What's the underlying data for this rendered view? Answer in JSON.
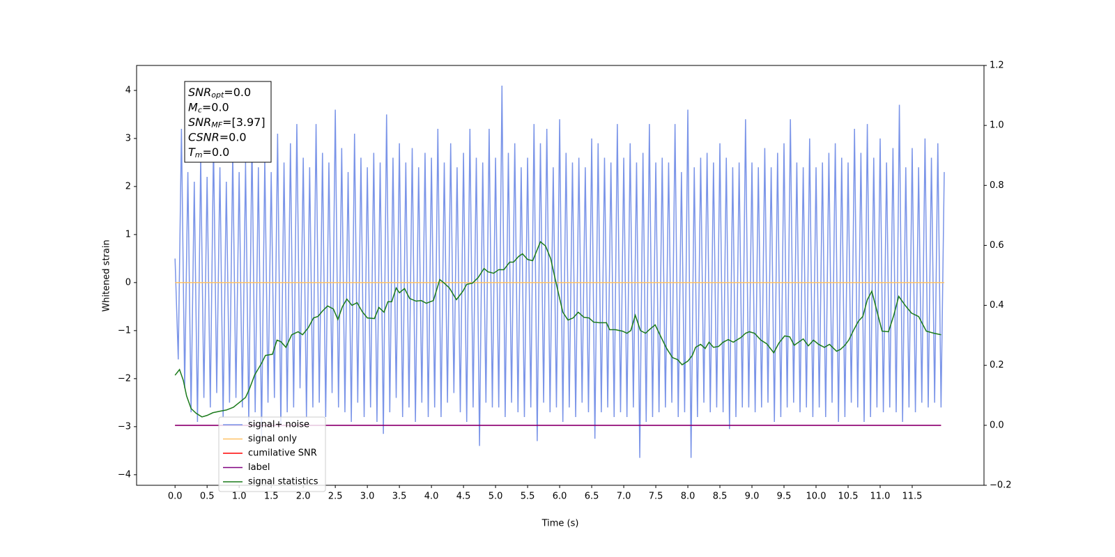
{
  "chart_data": {
    "type": "line",
    "xlabel": "Time (s)",
    "ylabel": "Whitened strain",
    "xlim": [
      -0.6,
      12.62
    ],
    "ylim": [
      -4.22,
      4.52
    ],
    "y2lim": [
      -0.2,
      1.2
    ],
    "xticks": [
      {
        "value": 0,
        "label": "0.0"
      },
      0.5,
      {
        "value": 1,
        "label": "1.0"
      },
      1.5,
      {
        "value": 2,
        "label": "2.0"
      },
      2.5,
      {
        "value": 3,
        "label": "3.0"
      },
      3.5,
      {
        "value": 4,
        "label": "4.0"
      },
      4.5,
      {
        "value": 5,
        "label": "5.0"
      },
      5.5,
      {
        "value": 6,
        "label": "6.0"
      },
      6.5,
      {
        "value": 7,
        "label": "7.0"
      },
      7.5,
      {
        "value": 8,
        "label": "8.0"
      },
      8.5,
      {
        "value": 9,
        "label": "9.0"
      },
      9.5,
      {
        "value": 10,
        "label": "10.0"
      },
      10.5,
      {
        "value": 11,
        "label": "11.0"
      },
      11.5
    ],
    "yticks": [
      {
        "value": -4,
        "label": "−4"
      },
      {
        "value": -3,
        "label": "−3"
      },
      {
        "value": -2,
        "label": "−2"
      },
      {
        "value": -1,
        "label": "−1"
      },
      0,
      1,
      2,
      3,
      4
    ],
    "y2ticks": [
      {
        "value": -0.2,
        "label": "−0.2"
      },
      {
        "value": 0,
        "label": "0.0"
      },
      0.2,
      0.4,
      0.6,
      0.8,
      {
        "value": 1,
        "label": "1.0"
      },
      1.2
    ],
    "grid": false,
    "legend": "lower left",
    "annotation": [
      {
        "symbol": "SNR",
        "sub": "opt",
        "text": "=0.0"
      },
      {
        "symbol": "M",
        "sub": "c",
        "text": "=0.0"
      },
      {
        "symbol": "SNR",
        "sub": "MF",
        "text": "=[3.97]"
      },
      {
        "symbol": "CSNR",
        "text": "=0.0"
      },
      {
        "symbol": "T",
        "sub": "m",
        "text": "=0.0"
      }
    ],
    "series": [
      {
        "name": "signal+ noise",
        "color": "#7a94e8",
        "axis": "y",
        "x": [
          0,
          0.05,
          0.1,
          0.15,
          0.2,
          0.25,
          0.3,
          0.35,
          0.4,
          0.45,
          0.5,
          0.55,
          0.6,
          0.65,
          0.7,
          0.75,
          0.8,
          0.85,
          0.9,
          0.95,
          1,
          1.05,
          1.1,
          1.15,
          1.2,
          1.25,
          1.3,
          1.35,
          1.4,
          1.45,
          1.5,
          1.55,
          1.6,
          1.65,
          1.7,
          1.75,
          1.8,
          1.85,
          1.9,
          1.95,
          2,
          2.05,
          2.1,
          2.15,
          2.2,
          2.25,
          2.3,
          2.35,
          2.4,
          2.45,
          2.5,
          2.55,
          2.6,
          2.65,
          2.7,
          2.75,
          2.8,
          2.85,
          2.9,
          2.95,
          3,
          3.05,
          3.1,
          3.15,
          3.2,
          3.25,
          3.3,
          3.35,
          3.4,
          3.45,
          3.5,
          3.55,
          3.6,
          3.65,
          3.7,
          3.75,
          3.8,
          3.85,
          3.9,
          3.95,
          4,
          4.05,
          4.1,
          4.15,
          4.2,
          4.25,
          4.3,
          4.35,
          4.4,
          4.45,
          4.5,
          4.55,
          4.6,
          4.65,
          4.7,
          4.75,
          4.8,
          4.85,
          4.9,
          4.95,
          5,
          5.05,
          5.1,
          5.15,
          5.2,
          5.25,
          5.3,
          5.35,
          5.4,
          5.45,
          5.5,
          5.55,
          5.6,
          5.65,
          5.7,
          5.75,
          5.8,
          5.85,
          5.9,
          5.95,
          6,
          6.05,
          6.1,
          6.15,
          6.2,
          6.25,
          6.3,
          6.35,
          6.4,
          6.45,
          6.5,
          6.55,
          6.6,
          6.65,
          6.7,
          6.75,
          6.8,
          6.85,
          6.9,
          6.95,
          7,
          7.05,
          7.1,
          7.15,
          7.2,
          7.25,
          7.3,
          7.35,
          7.4,
          7.45,
          7.5,
          7.55,
          7.6,
          7.65,
          7.7,
          7.75,
          7.8,
          7.85,
          7.9,
          7.95,
          8,
          8.05,
          8.1,
          8.15,
          8.2,
          8.25,
          8.3,
          8.35,
          8.4,
          8.45,
          8.5,
          8.55,
          8.6,
          8.65,
          8.7,
          8.75,
          8.8,
          8.85,
          8.9,
          8.95,
          9,
          9.05,
          9.1,
          9.15,
          9.2,
          9.25,
          9.3,
          9.35,
          9.4,
          9.45,
          9.5,
          9.55,
          9.6,
          9.65,
          9.7,
          9.75,
          9.8,
          9.85,
          9.9,
          9.95,
          10,
          10.05,
          10.1,
          10.15,
          10.2,
          10.25,
          10.3,
          10.35,
          10.4,
          10.45,
          10.5,
          10.55,
          10.6,
          10.65,
          10.7,
          10.75,
          10.8,
          10.85,
          10.9,
          10.95,
          11,
          11.05,
          11.1,
          11.15,
          11.2,
          11.25,
          11.3,
          11.35,
          11.4,
          11.45,
          11.5,
          11.55,
          11.6,
          11.65,
          11.7,
          11.75,
          11.8,
          11.85,
          11.9,
          11.95,
          12
        ],
        "values": [
          0.5,
          -1.6,
          3.2,
          -2.2,
          2.3,
          -2.7,
          2.1,
          -2.9,
          2.6,
          -2.4,
          2.2,
          -2.6,
          2.9,
          -2.3,
          2.4,
          -2.8,
          2.1,
          -2.5,
          2.7,
          -2.4,
          2.3,
          -2.6,
          2.5,
          -2.9,
          3.0,
          -2.7,
          2.4,
          -3.2,
          2.6,
          -2.5,
          2.3,
          -2.4,
          3.1,
          -3.0,
          2.5,
          -2.7,
          2.9,
          -2.6,
          3.3,
          -2.2,
          2.6,
          -2.8,
          2.4,
          -2.6,
          3.3,
          -2.5,
          2.7,
          -2.8,
          2.5,
          -2.3,
          3.6,
          -2.6,
          2.8,
          -2.7,
          2.3,
          -2.9,
          3.1,
          -2.5,
          2.6,
          -2.8,
          2.4,
          -2.6,
          2.7,
          -2.9,
          2.5,
          -3.15,
          3.5,
          -2.7,
          2.6,
          -2.4,
          2.9,
          -2.8,
          2.5,
          -2.6,
          2.8,
          -2.9,
          2.4,
          -2.5,
          2.7,
          -2.8,
          2.6,
          -2.6,
          3.2,
          -2.8,
          2.5,
          -2.5,
          2.9,
          -2.3,
          2.4,
          -2.7,
          2.7,
          -2.9,
          3.2,
          -2.6,
          2.6,
          -3.4,
          2.5,
          -2.5,
          3.2,
          -2.6,
          2.6,
          -2.6,
          4.1,
          -2.8,
          2.7,
          -2.5,
          2.9,
          -2.7,
          2.4,
          -2.8,
          2.6,
          -2.6,
          3.3,
          -3.3,
          2.9,
          -2.5,
          3.2,
          -2.7,
          2.4,
          -2.6,
          3.4,
          -2.9,
          2.7,
          -2.6,
          2.5,
          -2.8,
          2.6,
          -2.5,
          2.4,
          -2.7,
          3.0,
          -3.25,
          2.9,
          -2.7,
          2.6,
          -2.6,
          2.5,
          -2.8,
          3.3,
          -2.7,
          2.6,
          -2.8,
          2.9,
          -2.6,
          2.5,
          -3.65,
          2.7,
          -2.9,
          3.3,
          -2.8,
          2.5,
          -2.7,
          2.6,
          -2.6,
          2.5,
          -2.5,
          3.3,
          -2.8,
          2.3,
          -2.7,
          3.6,
          -3.65,
          2.4,
          -2.8,
          2.6,
          -2.5,
          2.7,
          -2.7,
          2.5,
          -2.6,
          2.9,
          -2.7,
          2.6,
          -3.05,
          2.4,
          -2.8,
          2.5,
          -2.6,
          3.4,
          -2.6,
          2.5,
          -2.7,
          2.4,
          -2.6,
          2.8,
          -2.5,
          2.4,
          -2.9,
          2.7,
          -2.8,
          2.9,
          -2.6,
          3.4,
          -2.5,
          2.5,
          -2.7,
          2.4,
          -2.6,
          3.0,
          -2.8,
          2.4,
          -2.6,
          2.5,
          -2.8,
          2.7,
          -2.5,
          2.9,
          -2.9,
          2.6,
          -2.8,
          2.5,
          -2.5,
          3.2,
          -2.6,
          2.7,
          -2.9,
          3.3,
          -2.8,
          2.6,
          -2.6,
          3.0,
          -2.7,
          2.5,
          -2.6,
          2.8,
          -2.7,
          3.7,
          -2.9,
          2.4,
          -2.6,
          2.8,
          -2.7,
          2.4,
          -2.5,
          3.0,
          -2.6,
          2.6,
          -2.5,
          2.9,
          -2.6,
          2.3
        ]
      },
      {
        "name": "signal only",
        "color": "#ffc266",
        "axis": "y",
        "x": [
          0,
          12
        ],
        "values": [
          0,
          0
        ]
      },
      {
        "name": "cumilative SNR",
        "color": "#ff0000",
        "axis": "y2",
        "x": [
          0,
          11.95
        ],
        "values": [
          0,
          0
        ]
      },
      {
        "name": "label",
        "color": "#800080",
        "axis": "y2",
        "x": [
          0,
          11.95
        ],
        "values": [
          0,
          0
        ]
      },
      {
        "name": "signal statistics",
        "color": "#1a7a1a",
        "axis": "y2",
        "x": [
          0,
          0.07,
          0.13,
          0.18,
          0.25,
          0.33,
          0.42,
          0.5,
          0.59,
          0.7,
          0.8,
          0.91,
          1.02,
          1.1,
          1.16,
          1.24,
          1.35,
          1.41,
          1.52,
          1.59,
          1.65,
          1.73,
          1.82,
          1.92,
          1.99,
          2.08,
          2.16,
          2.23,
          2.3,
          2.38,
          2.47,
          2.54,
          2.61,
          2.68,
          2.76,
          2.84,
          2.92,
          3.0,
          3.11,
          3.18,
          3.26,
          3.32,
          3.38,
          3.45,
          3.5,
          3.58,
          3.66,
          3.76,
          3.84,
          3.92,
          4.03,
          4.13,
          4.2,
          4.28,
          4.39,
          4.49,
          4.55,
          4.64,
          4.73,
          4.82,
          4.88,
          4.97,
          5.05,
          5.13,
          5.22,
          5.28,
          5.36,
          5.42,
          5.5,
          5.58,
          5.7,
          5.78,
          5.86,
          5.92,
          6.0,
          6.05,
          6.13,
          6.21,
          6.29,
          6.38,
          6.46,
          6.53,
          6.62,
          6.73,
          6.78,
          6.87,
          6.98,
          7.05,
          7.11,
          7.18,
          7.26,
          7.34,
          7.4,
          7.49,
          7.58,
          7.67,
          7.76,
          7.84,
          7.91,
          8.0,
          8.07,
          8.12,
          8.2,
          8.27,
          8.33,
          8.4,
          8.48,
          8.55,
          8.63,
          8.71,
          8.76,
          8.83,
          8.9,
          8.96,
          9.04,
          9.14,
          9.23,
          9.34,
          9.42,
          9.51,
          9.59,
          9.66,
          9.74,
          9.8,
          9.88,
          9.96,
          10.04,
          10.13,
          10.21,
          10.32,
          10.38,
          10.45,
          10.51,
          10.59,
          10.66,
          10.73,
          10.8,
          10.87,
          10.95,
          11.03,
          11.13,
          11.21,
          11.29,
          11.39,
          11.49,
          11.6,
          11.72,
          11.84,
          11.95
        ],
        "values": [
          0.167,
          0.186,
          0.149,
          0.098,
          0.056,
          0.04,
          0.028,
          0.033,
          0.042,
          0.047,
          0.051,
          0.06,
          0.079,
          0.093,
          0.121,
          0.167,
          0.207,
          0.233,
          0.237,
          0.284,
          0.279,
          0.26,
          0.302,
          0.312,
          0.302,
          0.326,
          0.358,
          0.363,
          0.381,
          0.398,
          0.388,
          0.353,
          0.395,
          0.421,
          0.4,
          0.409,
          0.379,
          0.358,
          0.356,
          0.393,
          0.377,
          0.412,
          0.412,
          0.458,
          0.442,
          0.456,
          0.423,
          0.414,
          0.416,
          0.407,
          0.416,
          0.486,
          0.474,
          0.458,
          0.419,
          0.447,
          0.47,
          0.474,
          0.493,
          0.523,
          0.512,
          0.507,
          0.519,
          0.519,
          0.544,
          0.544,
          0.563,
          0.572,
          0.553,
          0.549,
          0.612,
          0.598,
          0.556,
          0.498,
          0.423,
          0.377,
          0.351,
          0.358,
          0.377,
          0.36,
          0.358,
          0.344,
          0.342,
          0.342,
          0.319,
          0.319,
          0.314,
          0.307,
          0.316,
          0.367,
          0.316,
          0.307,
          0.319,
          0.335,
          0.295,
          0.256,
          0.226,
          0.219,
          0.202,
          0.214,
          0.233,
          0.26,
          0.27,
          0.256,
          0.277,
          0.26,
          0.263,
          0.277,
          0.286,
          0.277,
          0.284,
          0.293,
          0.307,
          0.312,
          0.307,
          0.284,
          0.272,
          0.242,
          0.274,
          0.298,
          0.295,
          0.267,
          0.279,
          0.288,
          0.265,
          0.284,
          0.27,
          0.26,
          0.27,
          0.247,
          0.253,
          0.267,
          0.284,
          0.319,
          0.347,
          0.363,
          0.419,
          0.447,
          0.381,
          0.314,
          0.312,
          0.365,
          0.43,
          0.4,
          0.374,
          0.363,
          0.314,
          0.307,
          0.302
        ]
      }
    ]
  }
}
